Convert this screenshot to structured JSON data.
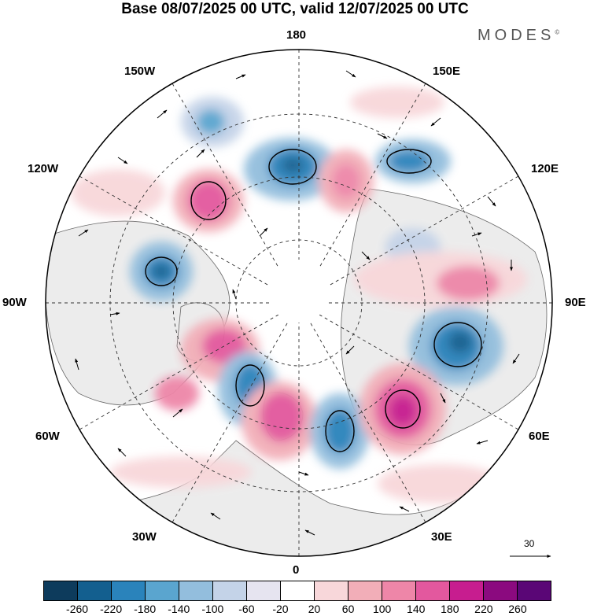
{
  "title": "Base 08/07/2025 00 UTC, valid 12/07/2025 00 UTC",
  "brand": "MODES",
  "brand_mark": "©",
  "longitude_labels": {
    "top": "180",
    "bottom": "0",
    "left": "90W",
    "right": "90E",
    "upper_left_1": "150W",
    "upper_left_2": "120W",
    "lower_left_1": "60W",
    "lower_left_2": "30W",
    "upper_right_1": "150E",
    "upper_right_2": "120E",
    "lower_right_1": "60E",
    "lower_right_2": "30E"
  },
  "vector_reference": "30",
  "colorbar": {
    "colors": [
      "#0d3b5c",
      "#135f8f",
      "#2a83bb",
      "#5aa5cf",
      "#93bedd",
      "#c4d3e8",
      "#e6e4f0",
      "#ffffff",
      "#f8d7da",
      "#f2aeb8",
      "#ee86a8",
      "#e3589e",
      "#c71d8f",
      "#8b0a7f",
      "#5a0676"
    ],
    "ticks": [
      "-260",
      "-220",
      "-180",
      "-140",
      "-100",
      "-60",
      "-20",
      "20",
      "60",
      "100",
      "140",
      "180",
      "220",
      "260"
    ]
  },
  "map": {
    "colors": {
      "land": "#eeeeee",
      "coast": "#555555",
      "grid": "#333333",
      "vector": "#000000",
      "contour": "#000000"
    },
    "anomalies": [
      {
        "color": "#2a83bb",
        "level": -180
      },
      {
        "color": "#135f8f",
        "level": -220
      },
      {
        "color": "#5aa5cf",
        "level": -140
      },
      {
        "color": "#e3589e",
        "level": 180
      },
      {
        "color": "#c71d8f",
        "level": 220
      },
      {
        "color": "#ee86a8",
        "level": 140
      },
      {
        "color": "#f2aeb8",
        "level": 100
      }
    ]
  }
}
